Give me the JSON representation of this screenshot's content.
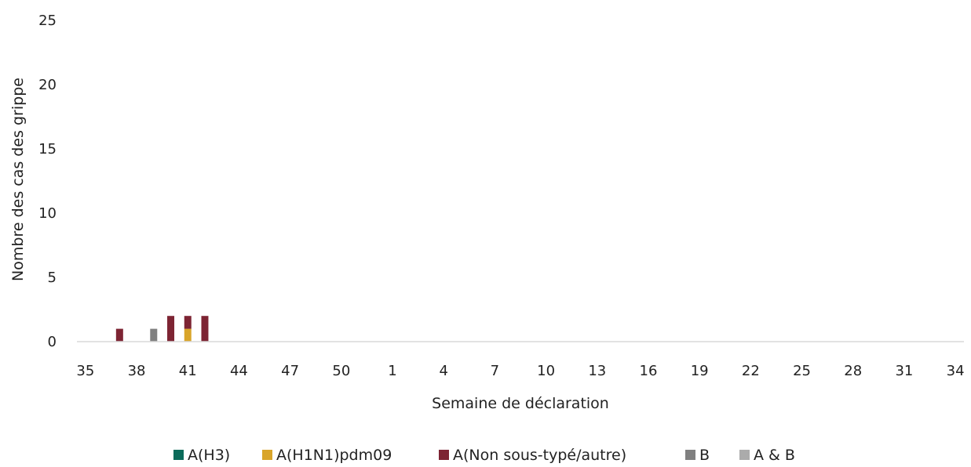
{
  "chart_data": {
    "type": "bar",
    "stacked": true,
    "xlabel": "Semaine de déclaration",
    "ylabel": "Nombre des cas des grippe",
    "ylim": [
      0,
      25
    ],
    "yticks": [
      0,
      5,
      10,
      15,
      20,
      25
    ],
    "grid": false,
    "legend_position": "bottom",
    "categories": [
      "35",
      "36",
      "37",
      "38",
      "39",
      "40",
      "41",
      "42",
      "43",
      "44",
      "45",
      "46",
      "47",
      "48",
      "49",
      "50",
      "51",
      "52",
      "1",
      "2",
      "3",
      "4",
      "5",
      "6",
      "7",
      "8",
      "9",
      "10",
      "11",
      "12",
      "13",
      "14",
      "15",
      "16",
      "17",
      "18",
      "19",
      "20",
      "21",
      "22",
      "23",
      "24",
      "25",
      "26",
      "27",
      "28",
      "29",
      "30",
      "31",
      "32",
      "33",
      "34"
    ],
    "x_tick_labels": [
      "35",
      "38",
      "41",
      "44",
      "47",
      "50",
      "1",
      "4",
      "7",
      "10",
      "13",
      "16",
      "19",
      "22",
      "25",
      "28",
      "31",
      "34"
    ],
    "series": [
      {
        "name": "A(H3)",
        "color": "#0b6b5a",
        "values": [
          0,
          0,
          0,
          0,
          0,
          0,
          0,
          0,
          0,
          0,
          0,
          0,
          0,
          0,
          0,
          0,
          0,
          0,
          0,
          0,
          0,
          0,
          0,
          0,
          0,
          0,
          0,
          0,
          0,
          0,
          0,
          0,
          0,
          0,
          0,
          0,
          0,
          0,
          0,
          0,
          0,
          0,
          0,
          0,
          0,
          0,
          0,
          0,
          0,
          0,
          0,
          0
        ]
      },
      {
        "name": "A(H1N1)pdm09",
        "color": "#d9a52a",
        "values": [
          0,
          0,
          0,
          0,
          0,
          0,
          1,
          0,
          0,
          0,
          0,
          0,
          0,
          0,
          0,
          0,
          0,
          0,
          0,
          0,
          0,
          0,
          0,
          0,
          0,
          0,
          0,
          0,
          0,
          0,
          0,
          0,
          0,
          0,
          0,
          0,
          0,
          0,
          0,
          0,
          0,
          0,
          0,
          0,
          0,
          0,
          0,
          0,
          0,
          0,
          0,
          0
        ]
      },
      {
        "name": "A(Non sous-typé/autre)",
        "color": "#7d2433",
        "values": [
          0,
          0,
          1,
          0,
          0,
          2,
          1,
          2,
          0,
          0,
          0,
          0,
          0,
          0,
          0,
          0,
          0,
          0,
          0,
          0,
          0,
          0,
          0,
          0,
          0,
          0,
          0,
          0,
          0,
          0,
          0,
          0,
          0,
          0,
          0,
          0,
          0,
          0,
          0,
          0,
          0,
          0,
          0,
          0,
          0,
          0,
          0,
          0,
          0,
          0,
          0,
          0
        ]
      },
      {
        "name": "B",
        "color": "#808080",
        "values": [
          0,
          0,
          0,
          0,
          1,
          0,
          0,
          0,
          0,
          0,
          0,
          0,
          0,
          0,
          0,
          0,
          0,
          0,
          0,
          0,
          0,
          0,
          0,
          0,
          0,
          0,
          0,
          0,
          0,
          0,
          0,
          0,
          0,
          0,
          0,
          0,
          0,
          0,
          0,
          0,
          0,
          0,
          0,
          0,
          0,
          0,
          0,
          0,
          0,
          0,
          0,
          0
        ]
      },
      {
        "name": "A & B",
        "color": "#ababab",
        "values": [
          0,
          0,
          0,
          0,
          0,
          0,
          0,
          0,
          0,
          0,
          0,
          0,
          0,
          0,
          0,
          0,
          0,
          0,
          0,
          0,
          0,
          0,
          0,
          0,
          0,
          0,
          0,
          0,
          0,
          0,
          0,
          0,
          0,
          0,
          0,
          0,
          0,
          0,
          0,
          0,
          0,
          0,
          0,
          0,
          0,
          0,
          0,
          0,
          0,
          0,
          0,
          0
        ]
      }
    ],
    "axis_color": "#d9d9d9"
  }
}
